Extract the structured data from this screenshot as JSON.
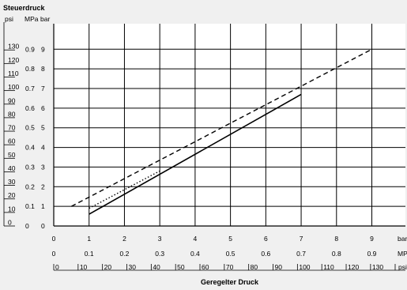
{
  "chart_data": {
    "type": "line",
    "title": "Steuerdruck",
    "xlabel": "Geregelter Druck",
    "y_unit_labels": [
      "psi",
      "MPa",
      "bar"
    ],
    "x_unit_labels": [
      "bar",
      "MPa",
      "psi"
    ],
    "x_bar_ticks": [
      "0",
      "1",
      "2",
      "3",
      "4",
      "5",
      "6",
      "7",
      "8",
      "9"
    ],
    "x_mpa_ticks": [
      "0",
      "0.1",
      "0.2",
      "0.3",
      "0.4",
      "0.5",
      "0.6",
      "0.7",
      "0.8",
      "0.9"
    ],
    "x_psi_ticks": [
      "0",
      "10",
      "20",
      "30",
      "40",
      "50",
      "60",
      "70",
      "80",
      "90",
      "100",
      "110",
      "120",
      "130"
    ],
    "y_bar_ticks": [
      "0",
      "1",
      "2",
      "3",
      "4",
      "5",
      "6",
      "7",
      "8",
      "9"
    ],
    "y_mpa_ticks": [
      "0",
      "0.1",
      "0.2",
      "0.3",
      "0.4",
      "0.5",
      "0.6",
      "0.7",
      "0.8",
      "0.9"
    ],
    "y_psi_ticks": [
      "0",
      "10",
      "20",
      "30",
      "40",
      "50",
      "60",
      "70",
      "80",
      "90",
      "100",
      "110",
      "120",
      "130"
    ],
    "xlim": [
      0,
      9.95
    ],
    "ylim": [
      0,
      10.3
    ],
    "grid": true,
    "series": [
      {
        "style": "dashed",
        "x": [
          0.5,
          9.0
        ],
        "y": [
          1.0,
          9.0
        ]
      },
      {
        "style": "solid",
        "x": [
          1.0,
          7.0
        ],
        "y": [
          0.6,
          6.7
        ]
      },
      {
        "style": "dotted",
        "x": [
          1.0,
          3.0
        ],
        "y": [
          0.9,
          2.8
        ]
      }
    ]
  }
}
